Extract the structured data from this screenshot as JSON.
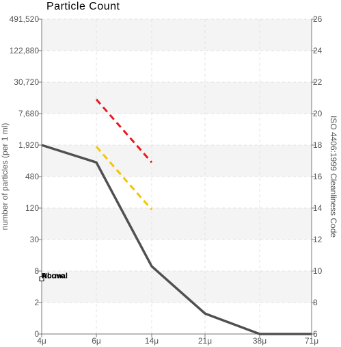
{
  "chart_data": {
    "type": "line",
    "title": "Particle Count",
    "ylabel": "number of particles (per 1 ml)",
    "ylabel_right": "ISO 4406:1999 Cleanliness Code",
    "x_ticks": [
      "4μ",
      "6μ",
      "14μ",
      "21μ",
      "38μ",
      "71μ"
    ],
    "y_ticks_left": [
      "0",
      "2",
      "8",
      "30",
      "120",
      "480",
      "1,920",
      "7,680",
      "30,720",
      "122,880",
      "491,520"
    ],
    "y_ticks_right": [
      "6",
      "8",
      "10",
      "12",
      "14",
      "16",
      "18",
      "20",
      "22",
      "24",
      "26"
    ],
    "ylim_right": [
      6,
      26
    ],
    "grid": true,
    "series": [
      {
        "name": "",
        "color": "#505050",
        "style": "solid",
        "points": [
          [
            0,
            18.0
          ],
          [
            1,
            16.9
          ],
          [
            2,
            10.3
          ],
          [
            3,
            7.3
          ],
          [
            4,
            6.0
          ],
          [
            5,
            6.0
          ]
        ]
      },
      {
        "name": "",
        "color": "#e8191f",
        "style": "dashed",
        "points": [
          [
            1,
            20.9
          ],
          [
            2,
            16.9
          ]
        ]
      },
      {
        "name": "",
        "color": "#f5c400",
        "style": "dashed",
        "points": [
          [
            1,
            17.9
          ],
          [
            2,
            13.9
          ]
        ]
      }
    ],
    "legend_labels": [
      "Above",
      "Normal"
    ],
    "legend_marker_value": 9.5
  }
}
